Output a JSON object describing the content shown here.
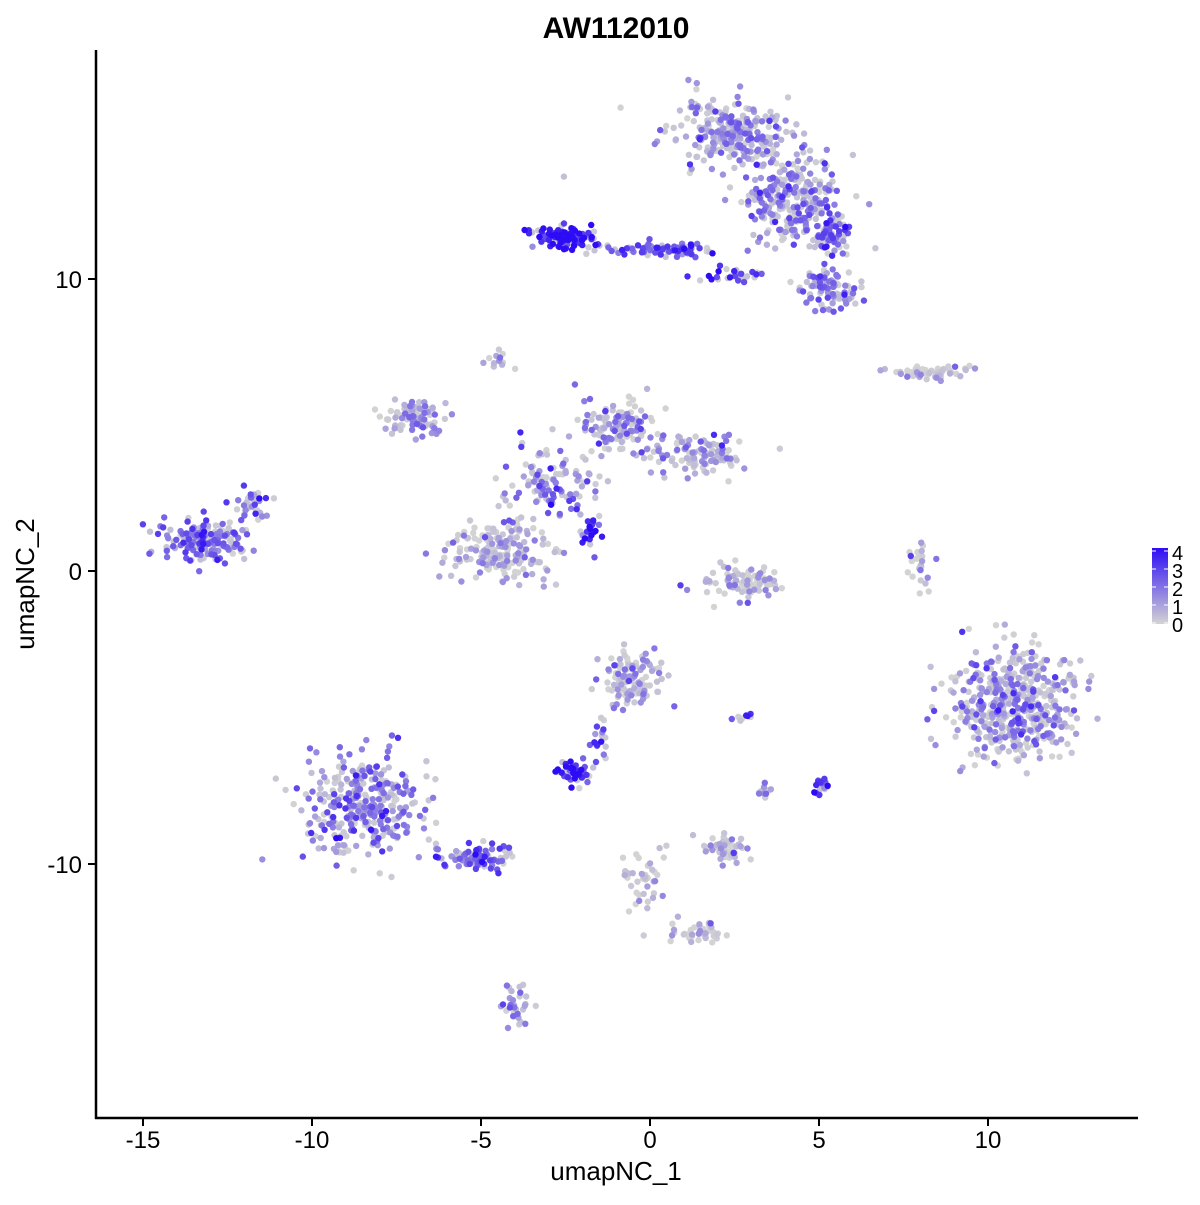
{
  "chart_data": {
    "type": "scatter",
    "title": "AW112010",
    "xlabel": "umapNC_1",
    "ylabel": "umapNC_2",
    "xlim": [
      -16.4,
      14.4
    ],
    "ylim": [
      -18.2,
      18.1
    ],
    "x_ticks": [
      -15,
      -10,
      -5,
      0,
      5,
      10
    ],
    "x_tick_labels": [
      "-15",
      "-10",
      "-5",
      "0",
      "5",
      "10"
    ],
    "y_ticks": [
      -10,
      0,
      10
    ],
    "y_tick_labels": [
      "-10",
      "0",
      "10"
    ],
    "grid": false,
    "legend": {
      "placement": "right",
      "type": "colorbar",
      "ticks": [
        "0",
        "1",
        "2",
        "3",
        "4"
      ],
      "range": [
        0,
        4
      ],
      "low_color": "#d3d3d3",
      "high_color": "#2d0cf5"
    },
    "clusters": [
      {
        "center": [
          2.4,
          15.0
        ],
        "spread": [
          1.3,
          1.0
        ],
        "n": 260,
        "level": 1.3
      },
      {
        "center": [
          4.2,
          12.8
        ],
        "spread": [
          1.2,
          1.2
        ],
        "n": 260,
        "level": 1.6
      },
      {
        "center": [
          5.3,
          11.5
        ],
        "spread": [
          0.6,
          0.6
        ],
        "n": 70,
        "level": 2.4
      },
      {
        "center": [
          5.3,
          9.7
        ],
        "spread": [
          0.8,
          0.6
        ],
        "n": 90,
        "level": 1.7
      },
      {
        "center": [
          -2.5,
          11.4
        ],
        "spread": [
          0.7,
          0.3
        ],
        "n": 120,
        "level": 3.6
      },
      {
        "center": [
          0.5,
          11.0
        ],
        "spread": [
          1.5,
          0.2
        ],
        "n": 80,
        "level": 2.6
      },
      {
        "center": [
          2.5,
          10.1
        ],
        "spread": [
          0.8,
          0.15
        ],
        "n": 30,
        "level": 3.0
      },
      {
        "center": [
          -7.0,
          5.2
        ],
        "spread": [
          0.8,
          0.5
        ],
        "n": 90,
        "level": 1.0
      },
      {
        "center": [
          -1.0,
          5.0
        ],
        "spread": [
          1.0,
          0.8
        ],
        "n": 120,
        "level": 1.1
      },
      {
        "center": [
          1.5,
          4.0
        ],
        "spread": [
          1.2,
          0.6
        ],
        "n": 110,
        "level": 1.0
      },
      {
        "center": [
          -3.0,
          3.0
        ],
        "spread": [
          1.2,
          0.8
        ],
        "n": 110,
        "level": 1.5
      },
      {
        "center": [
          -4.5,
          0.6
        ],
        "spread": [
          1.4,
          0.9
        ],
        "n": 180,
        "level": 0.8
      },
      {
        "center": [
          -1.8,
          1.4
        ],
        "spread": [
          0.3,
          0.5
        ],
        "n": 25,
        "level": 3.2
      },
      {
        "center": [
          -4.5,
          7.2
        ],
        "spread": [
          0.3,
          0.4
        ],
        "n": 12,
        "level": 0.4
      },
      {
        "center": [
          -13.2,
          1.0
        ],
        "spread": [
          1.0,
          0.6
        ],
        "n": 180,
        "level": 2.0
      },
      {
        "center": [
          -11.8,
          2.2
        ],
        "spread": [
          0.4,
          0.4
        ],
        "n": 35,
        "level": 2.0
      },
      {
        "center": [
          2.8,
          -0.4
        ],
        "spread": [
          0.9,
          0.5
        ],
        "n": 80,
        "level": 0.6
      },
      {
        "center": [
          8.3,
          6.8
        ],
        "spread": [
          1.0,
          0.2
        ],
        "n": 50,
        "level": 0.3
      },
      {
        "center": [
          8.0,
          0.3
        ],
        "spread": [
          0.3,
          0.8
        ],
        "n": 25,
        "level": 0.6
      },
      {
        "center": [
          10.8,
          -4.5
        ],
        "spread": [
          1.5,
          1.6
        ],
        "n": 500,
        "level": 1.2
      },
      {
        "center": [
          -0.6,
          -3.7
        ],
        "spread": [
          0.8,
          0.8
        ],
        "n": 120,
        "level": 0.8
      },
      {
        "center": [
          -2.3,
          -6.9
        ],
        "spread": [
          0.4,
          0.3
        ],
        "n": 50,
        "level": 3.4
      },
      {
        "center": [
          -1.5,
          -5.8
        ],
        "spread": [
          0.3,
          0.7
        ],
        "n": 20,
        "level": 2.5
      },
      {
        "center": [
          5.1,
          -7.3
        ],
        "spread": [
          0.2,
          0.3
        ],
        "n": 20,
        "level": 3.0
      },
      {
        "center": [
          3.4,
          -7.5
        ],
        "spread": [
          0.2,
          0.3
        ],
        "n": 10,
        "level": 1.5
      },
      {
        "center": [
          2.7,
          -5.0
        ],
        "spread": [
          0.3,
          0.1
        ],
        "n": 8,
        "level": 2.0
      },
      {
        "center": [
          2.2,
          -9.5
        ],
        "spread": [
          0.6,
          0.4
        ],
        "n": 50,
        "level": 0.5
      },
      {
        "center": [
          -8.5,
          -8.0
        ],
        "spread": [
          1.4,
          1.4
        ],
        "n": 330,
        "level": 1.6
      },
      {
        "center": [
          -5.2,
          -9.8
        ],
        "spread": [
          1.0,
          0.4
        ],
        "n": 80,
        "level": 2.4
      },
      {
        "center": [
          -4.0,
          -14.8
        ],
        "spread": [
          0.3,
          0.6
        ],
        "n": 30,
        "level": 1.6
      },
      {
        "center": [
          -0.2,
          -10.5
        ],
        "spread": [
          0.5,
          1.0
        ],
        "n": 40,
        "level": 0.3
      },
      {
        "center": [
          1.5,
          -12.3
        ],
        "spread": [
          1.0,
          0.3
        ],
        "n": 40,
        "level": 0.3
      },
      {
        "center": [
          -3.0,
          14.0
        ],
        "spread": [
          0.3,
          0.5
        ],
        "n": 1,
        "level": 0.5
      }
    ]
  }
}
